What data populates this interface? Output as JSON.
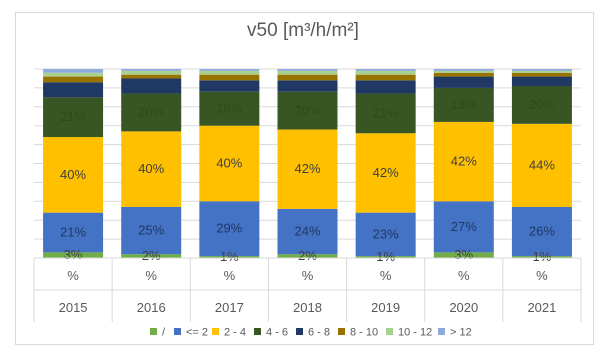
{
  "chart_data": {
    "type": "bar",
    "stacked": true,
    "normalized": true,
    "title": "v50 [m³/h/m²]",
    "categories": [
      "2015",
      "2016",
      "2017",
      "2018",
      "2019",
      "2020",
      "2021"
    ],
    "category_sublabel": "%",
    "ylim": [
      0,
      100
    ],
    "gridlines": true,
    "legend_position": "bottom",
    "series": [
      {
        "name": "/",
        "color": "#70ad47",
        "values": [
          3,
          2,
          1,
          2,
          1,
          3,
          1
        ],
        "labels": [
          "3%",
          "2%",
          "1%",
          "2%",
          "1%",
          "3%",
          "1%"
        ]
      },
      {
        "name": "<= 2",
        "color": "#4472c4",
        "values": [
          21,
          25,
          29,
          24,
          23,
          27,
          26
        ],
        "labels": [
          "21%",
          "25%",
          "29%",
          "24%",
          "23%",
          "27%",
          "26%"
        ]
      },
      {
        "name": "2 - 4",
        "color": "#ffc000",
        "values": [
          40,
          40,
          40,
          42,
          42,
          42,
          44
        ],
        "labels": [
          "40%",
          "40%",
          "40%",
          "42%",
          "42%",
          "42%",
          "44%"
        ]
      },
      {
        "name": "4 - 6",
        "color": "#375623",
        "values": [
          21,
          20,
          18,
          20,
          21,
          18,
          20
        ],
        "labels": [
          "21%",
          "20%",
          "18%",
          "20%",
          "21%",
          "18%",
          "20%"
        ]
      },
      {
        "name": "6 - 8",
        "color": "#203864",
        "values": [
          8,
          8,
          6,
          6,
          7,
          6,
          5
        ],
        "labels": [
          "",
          "",
          "",
          "",
          "",
          "",
          ""
        ]
      },
      {
        "name": "8 - 10",
        "color": "#997300",
        "values": [
          3,
          2,
          3,
          3,
          3,
          2,
          2
        ],
        "labels": [
          "",
          "",
          "",
          "",
          "",
          "",
          ""
        ]
      },
      {
        "name": "10 - 12",
        "color": "#a9d18e",
        "values": [
          2,
          2,
          2,
          2,
          2,
          1,
          1
        ],
        "labels": [
          "",
          "",
          "",
          "",
          "",
          "",
          ""
        ]
      },
      {
        "name": "> 12",
        "color": "#8faadc",
        "values": [
          2,
          1,
          1,
          1,
          1,
          1,
          1
        ],
        "labels": [
          "",
          "",
          "",
          "",
          "",
          "",
          ""
        ]
      }
    ]
  }
}
